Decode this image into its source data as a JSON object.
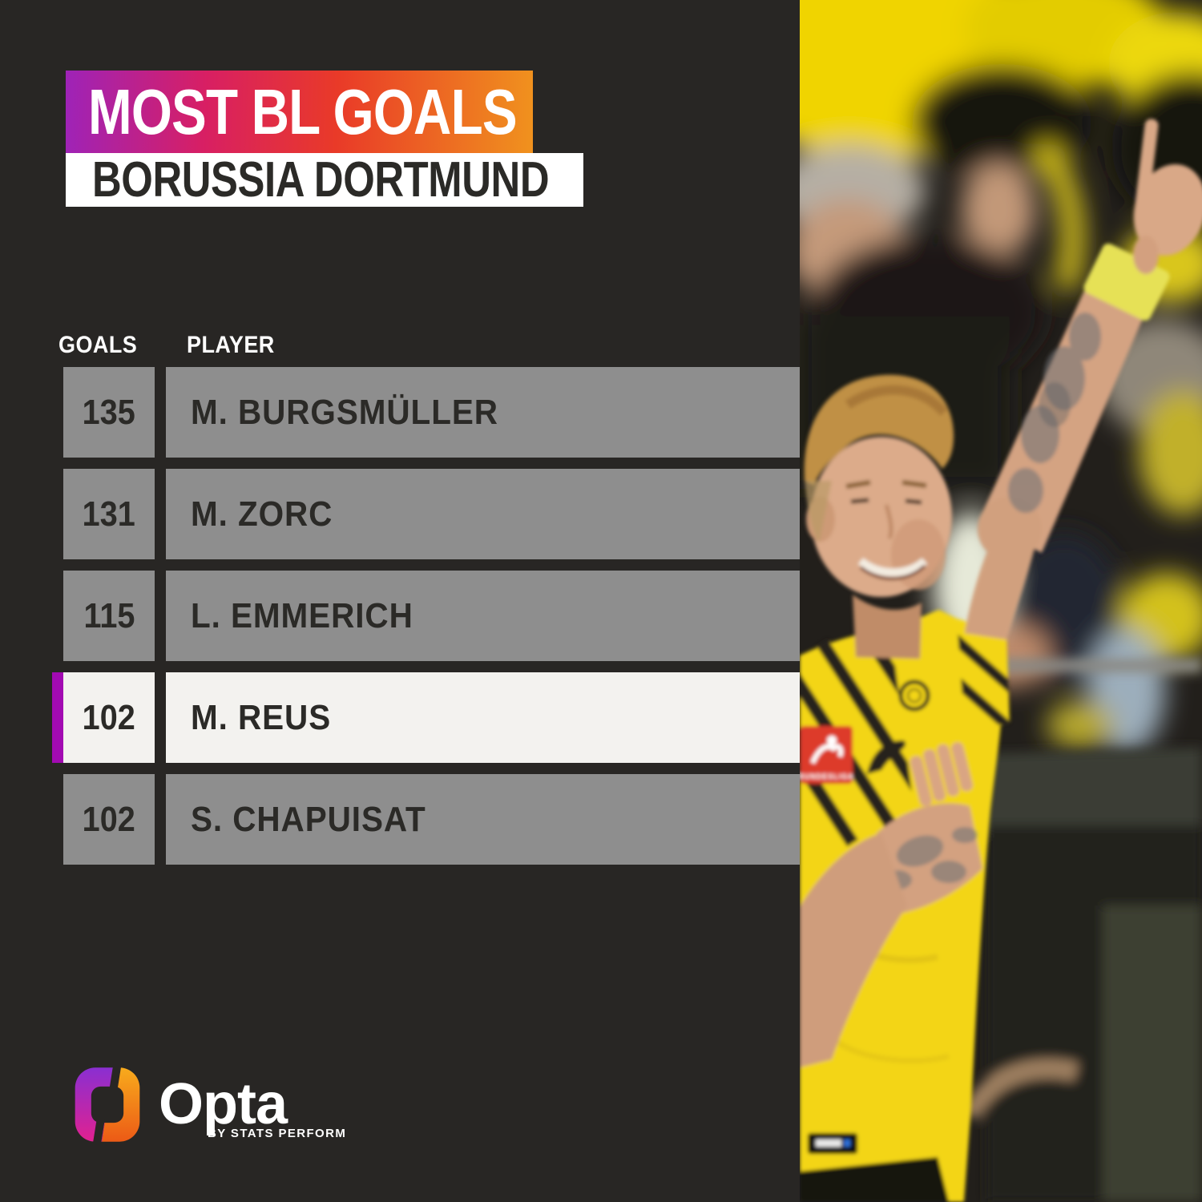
{
  "theme": {
    "bg": "#282624",
    "g1": "#9e23b8",
    "g2": "#d81f63",
    "g3": "#e93a28",
    "g4": "#f0921e",
    "subtitle_bg": "#ffffff",
    "row_gray": "#8e8e8e",
    "row_white": "#f3f2ef",
    "row_text": "#2b2a27",
    "header_text": "#ffffff",
    "accent": "#a20ab2",
    "bvb_yellow": "#f3d516"
  },
  "header": {
    "title": "MOST BL GOALS",
    "subtitle": "BORUSSIA DORTMUND"
  },
  "table": {
    "columns": {
      "goals": "GOALS",
      "player": "PLAYER"
    },
    "rows": [
      {
        "goals": "135",
        "player": "M. BURGSMÜLLER",
        "highlight": false
      },
      {
        "goals": "131",
        "player": "M. ZORC",
        "highlight": false
      },
      {
        "goals": "115",
        "player": "L. EMMERICH",
        "highlight": false
      },
      {
        "goals": "102",
        "player": "M. REUS",
        "highlight": true
      },
      {
        "goals": "102",
        "player": "S. CHAPUISAT",
        "highlight": false
      }
    ]
  },
  "footer": {
    "brand": "Opta",
    "tagline": "BY STATS PERFORM",
    "logo_icon": "opta-ring-logo"
  },
  "chart_data": {
    "type": "table",
    "title": "MOST BL GOALS",
    "subtitle": "BORUSSIA DORTMUND",
    "columns": [
      "GOALS",
      "PLAYER"
    ],
    "rows": [
      [
        135,
        "M. BURGSMÜLLER"
      ],
      [
        131,
        "M. ZORC"
      ],
      [
        115,
        "L. EMMERICH"
      ],
      [
        102,
        "M. REUS"
      ],
      [
        102,
        "S. CHAPUISAT"
      ]
    ],
    "highlighted_row": "M. REUS",
    "legend_position": "none",
    "grid": false
  }
}
